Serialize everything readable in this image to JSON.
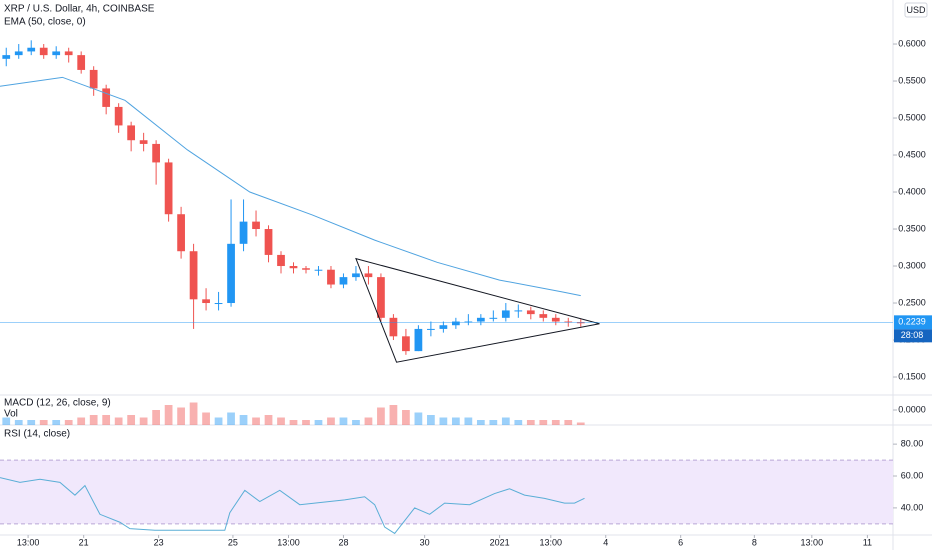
{
  "chart_data": {
    "type": "candlestick",
    "title": "XRP / U.S. Dollar, 4h, COINBASE",
    "currency": "USD",
    "up_color": "#2196f3",
    "down_color": "#ef5350",
    "x": [
      1,
      3,
      5,
      7,
      9,
      11,
      13,
      15,
      17,
      19,
      21,
      23,
      25,
      27,
      29,
      31,
      33,
      35,
      37,
      39,
      41,
      43,
      45,
      47,
      49,
      51,
      53,
      55,
      57,
      59,
      61,
      63,
      65,
      67,
      69,
      71,
      73,
      75,
      77,
      79,
      81,
      83,
      85,
      87,
      89,
      91,
      93
    ],
    "open": [
      0.58,
      0.585,
      0.59,
      0.595,
      0.585,
      0.59,
      0.585,
      0.565,
      0.54,
      0.515,
      0.49,
      0.47,
      0.465,
      0.44,
      0.37,
      0.32,
      0.255,
      0.25,
      0.25,
      0.33,
      0.36,
      0.35,
      0.315,
      0.3,
      0.297,
      0.295,
      0.295,
      0.275,
      0.285,
      0.29,
      0.285,
      0.23,
      0.205,
      0.185,
      0.215,
      0.215,
      0.22,
      0.225,
      0.225,
      0.23,
      0.23,
      0.24,
      0.24,
      0.235,
      0.23,
      0.225,
      0.224
    ],
    "high": [
      0.595,
      0.6,
      0.605,
      0.6,
      0.597,
      0.595,
      0.59,
      0.57,
      0.545,
      0.52,
      0.495,
      0.48,
      0.47,
      0.445,
      0.38,
      0.33,
      0.27,
      0.265,
      0.39,
      0.39,
      0.375,
      0.355,
      0.32,
      0.305,
      0.3,
      0.3,
      0.3,
      0.29,
      0.3,
      0.3,
      0.29,
      0.235,
      0.215,
      0.22,
      0.225,
      0.225,
      0.23,
      0.235,
      0.235,
      0.24,
      0.25,
      0.248,
      0.245,
      0.24,
      0.235,
      0.23,
      0.228
    ],
    "low": [
      0.57,
      0.58,
      0.585,
      0.58,
      0.58,
      0.575,
      0.56,
      0.53,
      0.505,
      0.48,
      0.455,
      0.455,
      0.41,
      0.36,
      0.31,
      0.215,
      0.24,
      0.24,
      0.245,
      0.32,
      0.34,
      0.305,
      0.29,
      0.29,
      0.29,
      0.287,
      0.27,
      0.27,
      0.28,
      0.275,
      0.225,
      0.2,
      0.18,
      0.185,
      0.205,
      0.21,
      0.215,
      0.22,
      0.22,
      0.225,
      0.225,
      0.23,
      0.228,
      0.225,
      0.22,
      0.218,
      0.218
    ],
    "close": [
      0.585,
      0.59,
      0.595,
      0.585,
      0.59,
      0.585,
      0.565,
      0.54,
      0.515,
      0.49,
      0.47,
      0.465,
      0.44,
      0.37,
      0.32,
      0.255,
      0.25,
      0.25,
      0.33,
      0.36,
      0.35,
      0.315,
      0.3,
      0.297,
      0.295,
      0.295,
      0.275,
      0.285,
      0.29,
      0.285,
      0.23,
      0.205,
      0.185,
      0.215,
      0.215,
      0.22,
      0.225,
      0.225,
      0.23,
      0.23,
      0.24,
      0.24,
      0.235,
      0.23,
      0.225,
      0.224,
      0.2239
    ],
    "xlim": [
      0,
      143
    ],
    "xticks": [
      {
        "value": 4.5,
        "label": "13:00"
      },
      {
        "value": 13.4,
        "label": "21"
      },
      {
        "value": 25.4,
        "label": "23"
      },
      {
        "value": 37.3,
        "label": "25"
      },
      {
        "value": 46.2,
        "label": "13:00"
      },
      {
        "value": 55,
        "label": "28"
      },
      {
        "value": 68,
        "label": "30"
      },
      {
        "value": 80,
        "label": "2021"
      },
      {
        "value": 88.2,
        "label": "13:00"
      },
      {
        "value": 97,
        "label": "4"
      },
      {
        "value": 109,
        "label": "6"
      },
      {
        "value": 120.8,
        "label": "8"
      },
      {
        "value": 130,
        "label": "13:00"
      },
      {
        "value": 138.9,
        "label": "11"
      }
    ],
    "ylim": [
      0.1257,
      0.6595
    ],
    "yticks": [
      {
        "value": 0.15,
        "label": "0.1500"
      },
      {
        "value": 0.2,
        "label": "0.2000"
      },
      {
        "value": 0.25,
        "label": "0.2500"
      },
      {
        "value": 0.3,
        "label": "0.3000"
      },
      {
        "value": 0.35,
        "label": "0.3500"
      },
      {
        "value": 0.4,
        "label": "0.4000"
      },
      {
        "value": 0.45,
        "label": "0.4500"
      },
      {
        "value": 0.5,
        "label": "0.5000"
      },
      {
        "value": 0.55,
        "label": "0.5500"
      },
      {
        "value": 0.6,
        "label": "0.6000"
      }
    ],
    "ema": {
      "name": "EMA (50, close, 0)",
      "color": "#4fa3e0",
      "x": [
        0,
        10,
        20,
        30,
        40,
        50,
        60,
        70,
        80,
        90,
        93
      ],
      "values": [
        0.543,
        0.555,
        0.524,
        0.457,
        0.4,
        0.369,
        0.335,
        0.305,
        0.281,
        0.265,
        0.26
      ]
    },
    "triangle": {
      "x": [
        57,
        96,
        63.5
      ],
      "y": [
        0.31,
        0.222,
        0.17
      ]
    },
    "last_price": 0.2239,
    "countdown": "28:08",
    "macd": {
      "name": "MACD (12, 26, close, 9)",
      "ylim": [
        -1,
        1
      ],
      "yticks": [
        {
          "value": 0,
          "label": "0.0000"
        }
      ]
    },
    "volume": {
      "name": "Vol",
      "ylim": [
        0,
        12
      ],
      "values": [
        3,
        2,
        2,
        2,
        2,
        2,
        3,
        4,
        4,
        3,
        4,
        3,
        6,
        8,
        7,
        9,
        5,
        3,
        5,
        4,
        3,
        4,
        3,
        2,
        2,
        2,
        3,
        3,
        2,
        3,
        7,
        8,
        6,
        5,
        4,
        3,
        3,
        3,
        2,
        2,
        3,
        2,
        2,
        2,
        2,
        2,
        1
      ]
    },
    "rsi": {
      "name": "RSI (14, close)",
      "color": "#5aaed6",
      "ylim": [
        23,
        92
      ],
      "band": [
        30,
        70
      ],
      "yticks": [
        {
          "value": 40,
          "label": "40.00"
        },
        {
          "value": 60,
          "label": "60.00"
        },
        {
          "value": 80,
          "label": "80.00"
        }
      ],
      "x": [
        0,
        3.2,
        6.4,
        9.6,
        12,
        13.6,
        16,
        19.2,
        20.8,
        24.8,
        36,
        36.8,
        39.2,
        41.6,
        44.8,
        48,
        52.8,
        55.2,
        58.4,
        60,
        61.6,
        63.2,
        64.8,
        66.4,
        68.8,
        71.2,
        75.2,
        79.2,
        81.6,
        84,
        87.2,
        90.4,
        92,
        93.6
      ],
      "values": [
        59,
        56,
        58,
        56,
        48,
        54,
        36,
        31,
        27,
        26,
        26,
        37,
        51,
        44,
        51,
        42,
        44,
        45,
        47,
        42,
        28,
        24,
        32,
        40,
        36,
        43,
        42,
        49,
        52,
        48,
        46,
        43,
        43,
        46
      ]
    }
  }
}
